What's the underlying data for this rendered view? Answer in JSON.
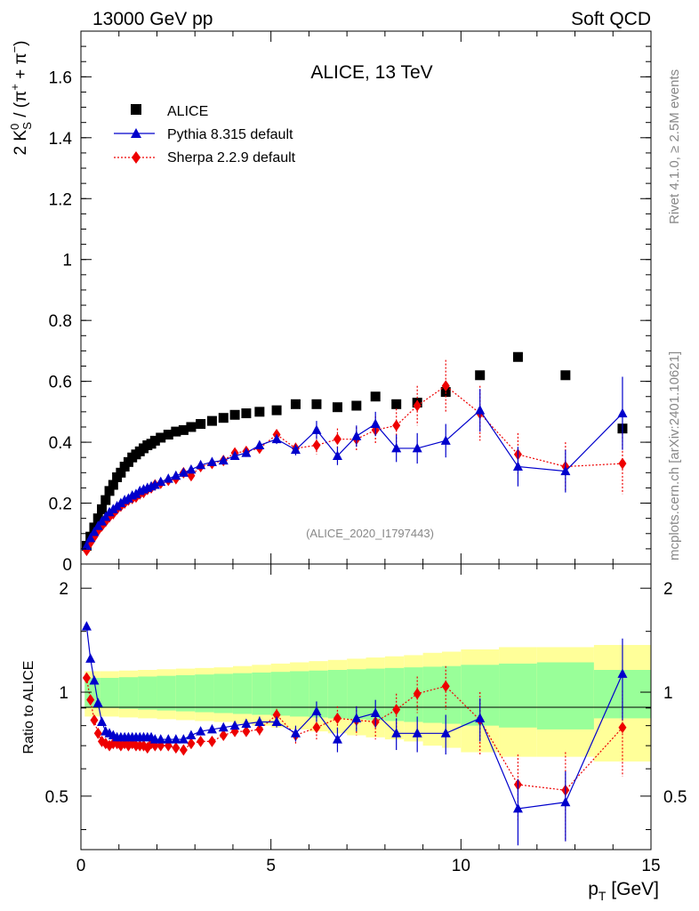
{
  "header": {
    "left": "13000 GeV pp",
    "right": "Soft QCD"
  },
  "side_text": {
    "rivet": "Rivet 4.1.0, ≥ 2.5M events",
    "mcplots": "mcplots.cern.ch [arXiv:2401.10621]"
  },
  "watermark": "(ALICE_2020_I1797443)",
  "colors": {
    "alice": "#000000",
    "pythia": "#0000cc",
    "sherpa": "#ee0000",
    "band_inner": "#99ff99",
    "band_outer": "#ffff99"
  },
  "chart_data": [
    {
      "type": "scatter",
      "title": "ALICE, 13 TeV",
      "xlabel": "p_T [GeV]",
      "ylabel": "2 K_S^0 / (π^+ + π^-)",
      "xlim": [
        0,
        15
      ],
      "ylim": [
        0,
        1.75
      ],
      "yticks": [
        "0",
        "0.2",
        "0.4",
        "0.6",
        "0.8",
        "1",
        "1.2",
        "1.4",
        "1.6"
      ],
      "xticks": [
        "0",
        "5",
        "10",
        "15"
      ],
      "legend": {
        "placement": "top-left",
        "entries": [
          "ALICE",
          "Pythia 8.315 default",
          "Sherpa 2.2.9 default"
        ]
      },
      "series": [
        {
          "name": "ALICE",
          "marker": "square",
          "line": "none",
          "x": [
            0.15,
            0.25,
            0.35,
            0.45,
            0.55,
            0.65,
            0.75,
            0.85,
            0.95,
            1.05,
            1.15,
            1.25,
            1.35,
            1.45,
            1.55,
            1.65,
            1.75,
            1.85,
            1.95,
            2.1,
            2.3,
            2.5,
            2.7,
            2.9,
            3.15,
            3.45,
            3.75,
            4.05,
            4.35,
            4.7,
            5.15,
            5.65,
            6.2,
            6.75,
            7.25,
            7.75,
            8.3,
            8.85,
            9.6,
            10.5,
            11.5,
            12.75,
            14.25
          ],
          "values": [
            0.06,
            0.09,
            0.12,
            0.15,
            0.18,
            0.21,
            0.24,
            0.26,
            0.285,
            0.3,
            0.32,
            0.335,
            0.35,
            0.36,
            0.37,
            0.38,
            0.39,
            0.395,
            0.405,
            0.415,
            0.425,
            0.435,
            0.44,
            0.45,
            0.46,
            0.47,
            0.48,
            0.49,
            0.495,
            0.5,
            0.505,
            0.525,
            0.525,
            0.515,
            0.52,
            0.55,
            0.525,
            0.53,
            0.565,
            0.62,
            0.68,
            0.62,
            0.445
          ]
        },
        {
          "name": "Pythia 8.315 default",
          "marker": "triangle",
          "line": "solid",
          "x": [
            0.15,
            0.25,
            0.35,
            0.45,
            0.55,
            0.65,
            0.75,
            0.85,
            0.95,
            1.05,
            1.15,
            1.25,
            1.35,
            1.45,
            1.55,
            1.65,
            1.75,
            1.85,
            1.95,
            2.1,
            2.3,
            2.5,
            2.7,
            2.9,
            3.15,
            3.45,
            3.75,
            4.05,
            4.35,
            4.7,
            5.15,
            5.65,
            6.2,
            6.75,
            7.25,
            7.75,
            8.3,
            8.85,
            9.6,
            10.5,
            11.5,
            12.75,
            14.25
          ],
          "values": [
            0.06,
            0.085,
            0.105,
            0.125,
            0.14,
            0.155,
            0.17,
            0.18,
            0.19,
            0.2,
            0.21,
            0.215,
            0.225,
            0.23,
            0.24,
            0.245,
            0.25,
            0.255,
            0.26,
            0.27,
            0.28,
            0.29,
            0.3,
            0.31,
            0.325,
            0.335,
            0.34,
            0.355,
            0.365,
            0.39,
            0.41,
            0.375,
            0.44,
            0.355,
            0.42,
            0.46,
            0.38,
            0.38,
            0.405,
            0.505,
            0.32,
            0.305,
            0.495
          ],
          "errors": [
            0.002,
            0.002,
            0.002,
            0.002,
            0.002,
            0.002,
            0.002,
            0.002,
            0.002,
            0.003,
            0.003,
            0.003,
            0.003,
            0.003,
            0.003,
            0.003,
            0.004,
            0.004,
            0.004,
            0.004,
            0.005,
            0.005,
            0.006,
            0.006,
            0.007,
            0.008,
            0.009,
            0.01,
            0.012,
            0.014,
            0.016,
            0.018,
            0.03,
            0.03,
            0.035,
            0.04,
            0.045,
            0.05,
            0.055,
            0.07,
            0.065,
            0.07,
            0.12
          ]
        },
        {
          "name": "Sherpa 2.2.9 default",
          "marker": "diamond",
          "line": "dotted",
          "x": [
            0.15,
            0.25,
            0.35,
            0.45,
            0.55,
            0.65,
            0.75,
            0.85,
            0.95,
            1.05,
            1.15,
            1.25,
            1.35,
            1.45,
            1.55,
            1.65,
            1.75,
            1.85,
            1.95,
            2.1,
            2.3,
            2.5,
            2.7,
            2.9,
            3.15,
            3.45,
            3.75,
            4.05,
            4.35,
            4.7,
            5.15,
            5.65,
            6.2,
            6.75,
            7.25,
            7.75,
            8.3,
            8.85,
            9.6,
            10.5,
            11.5,
            12.75,
            14.25
          ],
          "values": [
            0.045,
            0.07,
            0.09,
            0.11,
            0.125,
            0.14,
            0.155,
            0.165,
            0.18,
            0.19,
            0.2,
            0.21,
            0.215,
            0.22,
            0.23,
            0.235,
            0.245,
            0.25,
            0.26,
            0.265,
            0.275,
            0.28,
            0.3,
            0.29,
            0.32,
            0.33,
            0.34,
            0.365,
            0.37,
            0.38,
            0.425,
            0.38,
            0.39,
            0.41,
            0.41,
            0.44,
            0.455,
            0.52,
            0.585,
            0.495,
            0.36,
            0.32,
            0.33
          ],
          "errors": [
            0.002,
            0.002,
            0.002,
            0.002,
            0.002,
            0.002,
            0.002,
            0.002,
            0.002,
            0.003,
            0.003,
            0.003,
            0.003,
            0.003,
            0.003,
            0.003,
            0.004,
            0.004,
            0.004,
            0.004,
            0.005,
            0.005,
            0.006,
            0.006,
            0.007,
            0.008,
            0.009,
            0.01,
            0.012,
            0.014,
            0.016,
            0.018,
            0.03,
            0.035,
            0.04,
            0.045,
            0.055,
            0.065,
            0.085,
            0.09,
            0.07,
            0.08,
            0.1
          ]
        }
      ]
    },
    {
      "type": "scatter",
      "title": "",
      "xlabel": "p_T [GeV]",
      "ylabel": "Ratio to ALICE",
      "xlim": [
        0,
        15
      ],
      "ylim": [
        0.35,
        2.35
      ],
      "ylog": true,
      "yticks": [
        "0.5",
        "1",
        "2"
      ],
      "xticks": [
        "0",
        "5",
        "10",
        "15"
      ],
      "bands": {
        "edges": [
          0.1,
          0.5,
          1.0,
          1.5,
          2.0,
          2.5,
          3.0,
          3.5,
          4.0,
          4.5,
          5.0,
          5.5,
          6.0,
          6.5,
          7.0,
          7.5,
          8.0,
          8.5,
          9.0,
          9.5,
          10.0,
          11.0,
          12.0,
          13.5,
          15.0
        ],
        "inner": [
          0.1,
          0.1,
          0.105,
          0.11,
          0.115,
          0.12,
          0.125,
          0.13,
          0.135,
          0.14,
          0.145,
          0.15,
          0.155,
          0.16,
          0.165,
          0.17,
          0.175,
          0.18,
          0.185,
          0.19,
          0.2,
          0.21,
          0.22,
          0.16
        ],
        "outer": [
          0.15,
          0.15,
          0.155,
          0.16,
          0.165,
          0.17,
          0.175,
          0.18,
          0.19,
          0.2,
          0.21,
          0.22,
          0.23,
          0.24,
          0.25,
          0.26,
          0.27,
          0.28,
          0.3,
          0.31,
          0.33,
          0.35,
          0.35,
          0.37
        ]
      },
      "series": [
        {
          "name": "Pythia 8.315 default",
          "marker": "triangle",
          "line": "solid",
          "x": [
            0.15,
            0.25,
            0.35,
            0.45,
            0.55,
            0.65,
            0.75,
            0.85,
            0.95,
            1.05,
            1.15,
            1.25,
            1.35,
            1.45,
            1.55,
            1.65,
            1.75,
            1.85,
            1.95,
            2.1,
            2.3,
            2.5,
            2.7,
            2.9,
            3.15,
            3.45,
            3.75,
            4.05,
            4.35,
            4.7,
            5.15,
            5.65,
            6.2,
            6.75,
            7.25,
            7.75,
            8.3,
            8.85,
            9.6,
            10.5,
            11.5,
            12.75,
            14.25
          ],
          "values": [
            1.55,
            1.25,
            1.08,
            0.93,
            0.82,
            0.77,
            0.76,
            0.75,
            0.74,
            0.74,
            0.74,
            0.74,
            0.74,
            0.74,
            0.74,
            0.74,
            0.74,
            0.74,
            0.73,
            0.73,
            0.73,
            0.73,
            0.73,
            0.75,
            0.77,
            0.78,
            0.79,
            0.8,
            0.81,
            0.82,
            0.82,
            0.76,
            0.88,
            0.73,
            0.84,
            0.87,
            0.76,
            0.76,
            0.76,
            0.84,
            0.46,
            0.48,
            1.13
          ],
          "errors": [
            0.03,
            0.02,
            0.015,
            0.01,
            0.01,
            0.01,
            0.01,
            0.01,
            0.01,
            0.01,
            0.01,
            0.01,
            0.01,
            0.01,
            0.01,
            0.01,
            0.01,
            0.01,
            0.01,
            0.01,
            0.01,
            0.01,
            0.01,
            0.01,
            0.015,
            0.015,
            0.02,
            0.02,
            0.025,
            0.03,
            0.03,
            0.04,
            0.06,
            0.06,
            0.07,
            0.08,
            0.08,
            0.09,
            0.1,
            0.12,
            0.1,
            0.11,
            0.3
          ]
        },
        {
          "name": "Sherpa 2.2.9 default",
          "marker": "diamond",
          "line": "dotted",
          "x": [
            0.15,
            0.25,
            0.35,
            0.45,
            0.55,
            0.65,
            0.75,
            0.85,
            0.95,
            1.05,
            1.15,
            1.25,
            1.35,
            1.45,
            1.55,
            1.65,
            1.75,
            1.85,
            1.95,
            2.1,
            2.3,
            2.5,
            2.7,
            2.9,
            3.15,
            3.45,
            3.75,
            4.05,
            4.35,
            4.7,
            5.15,
            5.65,
            6.2,
            6.75,
            7.25,
            7.75,
            8.3,
            8.85,
            9.6,
            10.5,
            11.5,
            12.75,
            14.25
          ],
          "values": [
            1.1,
            0.95,
            0.83,
            0.76,
            0.72,
            0.71,
            0.7,
            0.71,
            0.71,
            0.7,
            0.71,
            0.7,
            0.71,
            0.7,
            0.7,
            0.7,
            0.69,
            0.71,
            0.7,
            0.7,
            0.7,
            0.69,
            0.68,
            0.71,
            0.72,
            0.72,
            0.75,
            0.77,
            0.77,
            0.78,
            0.86,
            0.75,
            0.79,
            0.84,
            0.83,
            0.82,
            0.89,
            0.99,
            1.04,
            0.83,
            0.54,
            0.52,
            0.79
          ],
          "errors": [
            0.03,
            0.02,
            0.015,
            0.01,
            0.01,
            0.01,
            0.01,
            0.01,
            0.01,
            0.01,
            0.01,
            0.01,
            0.01,
            0.01,
            0.01,
            0.01,
            0.01,
            0.01,
            0.01,
            0.01,
            0.01,
            0.01,
            0.01,
            0.01,
            0.015,
            0.015,
            0.02,
            0.02,
            0.025,
            0.03,
            0.035,
            0.04,
            0.06,
            0.07,
            0.08,
            0.09,
            0.1,
            0.12,
            0.15,
            0.17,
            0.12,
            0.15,
            0.22
          ]
        }
      ]
    }
  ]
}
